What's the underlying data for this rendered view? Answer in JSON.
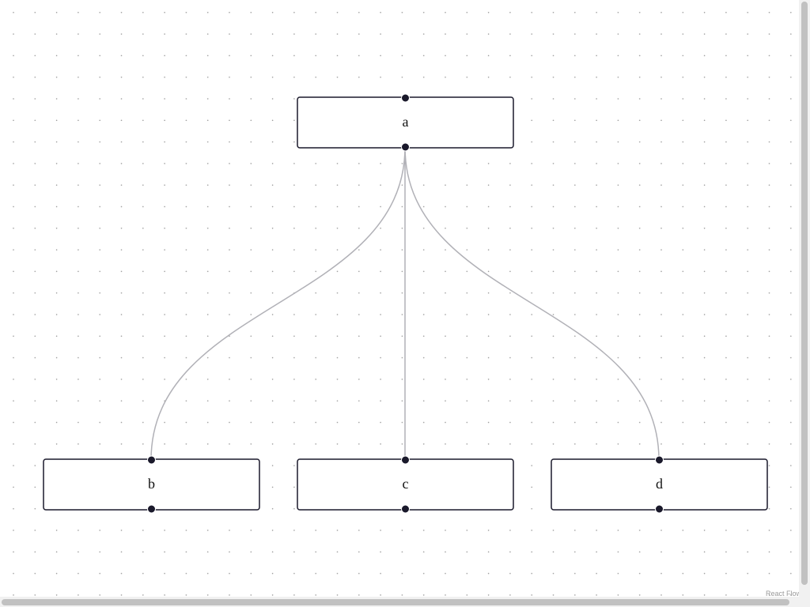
{
  "nodes": [
    {
      "label": "a"
    },
    {
      "label": "b"
    },
    {
      "label": "c"
    },
    {
      "label": "d"
    }
  ],
  "attribution": "React Flow"
}
